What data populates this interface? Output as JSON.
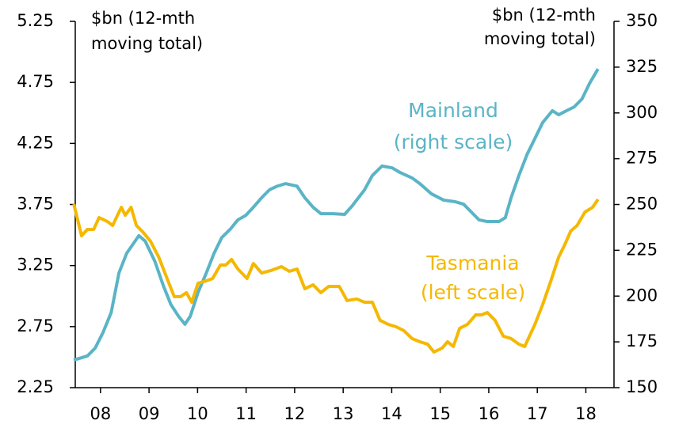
{
  "chart_data": {
    "type": "line",
    "ylabel": [
      "$bn (12-mth",
      "moving total)"
    ],
    "y2label": [
      "$bn (12-mth",
      "moving total)"
    ],
    "xlim": [
      2007.98,
      2019.08
    ],
    "xticks": [
      {
        "value": 2008.5,
        "label": "08"
      },
      {
        "value": 2009.5,
        "label": "09"
      },
      {
        "value": 2010.5,
        "label": "10"
      },
      {
        "value": 2011.5,
        "label": "11"
      },
      {
        "value": 2012.5,
        "label": "12"
      },
      {
        "value": 2013.5,
        "label": "13"
      },
      {
        "value": 2014.5,
        "label": "14"
      },
      {
        "value": 2015.5,
        "label": "15"
      },
      {
        "value": 2016.5,
        "label": "16"
      },
      {
        "value": 2017.5,
        "label": "17"
      },
      {
        "value": 2018.5,
        "label": "18"
      }
    ],
    "ylim": [
      2.25,
      5.25
    ],
    "yticks": [
      2.25,
      2.75,
      3.25,
      3.75,
      4.25,
      4.75,
      5.25
    ],
    "y2lim": [
      150,
      350
    ],
    "y2ticks": [
      150,
      175,
      200,
      225,
      250,
      275,
      300,
      325,
      350
    ],
    "grid": false,
    "series": [
      {
        "name": "Mainland",
        "annotation": "(right scale)",
        "axis": "y2",
        "color": "#5ab4c6",
        "x": [
          2007.95,
          2008.23,
          2008.39,
          2008.55,
          2008.72,
          2008.88,
          2009.04,
          2009.29,
          2009.42,
          2009.62,
          2009.79,
          2009.95,
          2010.11,
          2010.24,
          2010.35,
          2010.51,
          2010.68,
          2010.84,
          2011.0,
          2011.17,
          2011.33,
          2011.49,
          2011.65,
          2011.82,
          2011.98,
          2012.14,
          2012.31,
          2012.55,
          2012.71,
          2012.88,
          2013.04,
          2013.29,
          2013.53,
          2013.69,
          2013.94,
          2014.1,
          2014.3,
          2014.51,
          2014.67,
          2014.92,
          2015.08,
          2015.32,
          2015.57,
          2015.81,
          2015.98,
          2016.14,
          2016.3,
          2016.47,
          2016.71,
          2016.84,
          2016.96,
          2017.12,
          2017.29,
          2017.45,
          2017.61,
          2017.81,
          2017.94,
          2018.1,
          2018.26,
          2018.42,
          2018.58,
          2018.75
        ],
        "values": [
          165.1,
          167.3,
          171.6,
          180,
          191,
          212.6,
          223.4,
          233,
          230,
          219,
          206,
          195.4,
          188.9,
          184.6,
          189,
          202,
          212.6,
          223.4,
          232,
          236.4,
          241.6,
          244,
          248.5,
          253.7,
          258,
          260,
          261.4,
          260,
          253.7,
          248.5,
          245,
          245,
          244.6,
          249.4,
          258,
          265.8,
          271,
          270,
          267.5,
          264.5,
          261.4,
          255.8,
          252.4,
          251.5,
          250.2,
          245.9,
          241.6,
          240.7,
          240.7,
          242.8,
          253.7,
          265.8,
          277.4,
          286,
          294.7,
          301.2,
          299,
          301.2,
          303.3,
          307.6,
          316.3,
          324
        ]
      },
      {
        "name": "Tasmania",
        "annotation": "(left scale)",
        "axis": "y",
        "color": "#f5b800",
        "x": [
          2007.95,
          2008.11,
          2008.23,
          2008.36,
          2008.47,
          2008.64,
          2008.75,
          2008.85,
          2008.93,
          2009.01,
          2009.13,
          2009.24,
          2009.37,
          2009.53,
          2009.7,
          2009.89,
          2010.02,
          2010.15,
          2010.27,
          2010.38,
          2010.51,
          2010.68,
          2010.81,
          2010.97,
          2011.08,
          2011.2,
          2011.33,
          2011.52,
          2011.65,
          2011.82,
          2012.01,
          2012.23,
          2012.39,
          2012.55,
          2012.71,
          2012.88,
          2013.04,
          2013.2,
          2013.42,
          2013.58,
          2013.78,
          2013.94,
          2014.1,
          2014.26,
          2014.43,
          2014.59,
          2014.75,
          2014.92,
          2015.08,
          2015.24,
          2015.37,
          2015.54,
          2015.65,
          2015.77,
          2015.9,
          2016.06,
          2016.23,
          2016.35,
          2016.47,
          2016.63,
          2016.8,
          2016.96,
          2017.12,
          2017.24,
          2017.45,
          2017.61,
          2017.78,
          2017.94,
          2018.06,
          2018.19,
          2018.32,
          2018.48,
          2018.64,
          2018.75
        ],
        "values": [
          3.753,
          3.494,
          3.546,
          3.546,
          3.643,
          3.611,
          3.578,
          3.662,
          3.727,
          3.662,
          3.727,
          3.578,
          3.526,
          3.449,
          3.319,
          3.125,
          2.995,
          2.995,
          3.028,
          2.95,
          3.105,
          3.125,
          3.144,
          3.254,
          3.254,
          3.3,
          3.222,
          3.144,
          3.267,
          3.189,
          3.209,
          3.241,
          3.203,
          3.222,
          3.06,
          3.092,
          3.028,
          3.079,
          3.079,
          2.963,
          2.976,
          2.95,
          2.95,
          2.801,
          2.768,
          2.749,
          2.717,
          2.652,
          2.626,
          2.606,
          2.542,
          2.574,
          2.626,
          2.587,
          2.736,
          2.768,
          2.846,
          2.846,
          2.865,
          2.801,
          2.671,
          2.652,
          2.606,
          2.587,
          2.768,
          2.93,
          3.125,
          3.319,
          3.416,
          3.533,
          3.578,
          3.688,
          3.727,
          3.792
        ]
      }
    ]
  }
}
